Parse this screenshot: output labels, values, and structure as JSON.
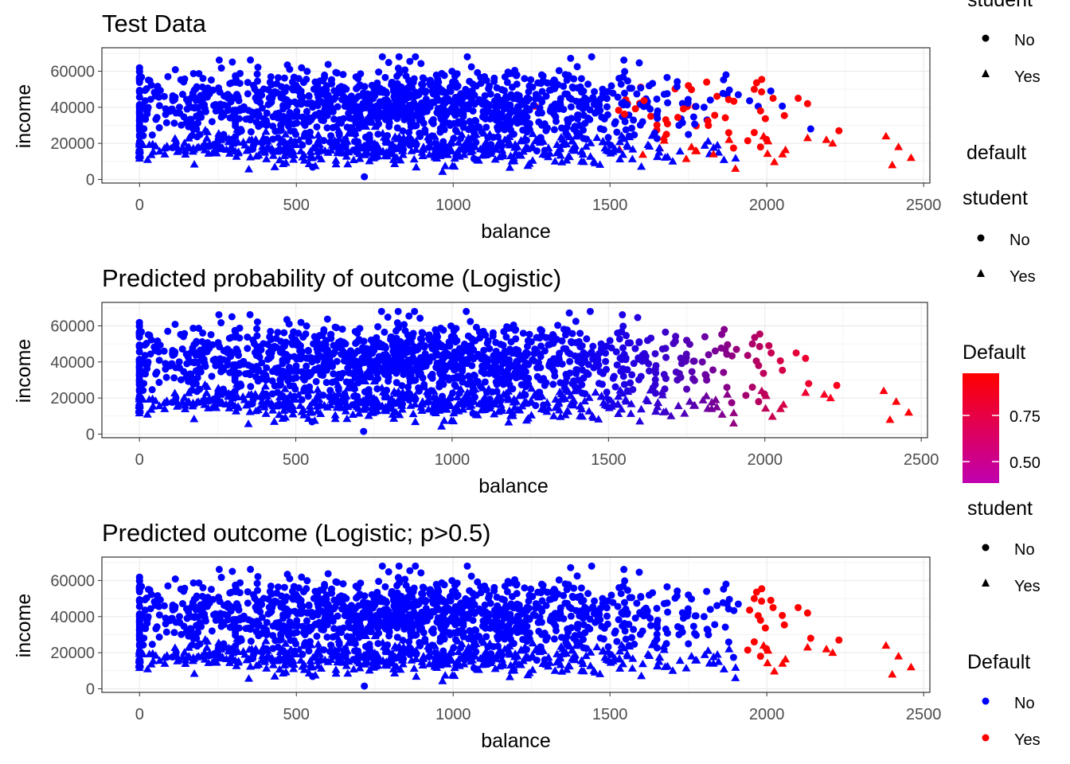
{
  "chart_data": [
    {
      "type": "scatter",
      "title": "Test Data",
      "xlabel": "balance",
      "ylabel": "income",
      "xlim": [
        -120,
        2520
      ],
      "ylim": [
        -2000,
        73000
      ],
      "xticks": [
        "0",
        "500",
        "1000",
        "1500",
        "2000",
        "2500"
      ],
      "yticks": [
        "0",
        "20000",
        "40000",
        "60000"
      ],
      "color_mode": "discrete",
      "grid": true,
      "series": [
        {
          "name": "No",
          "shape": "circle",
          "color": "#0000FF"
        },
        {
          "name": "Yes",
          "shape": "triangle",
          "color": "#FF0000"
        }
      ]
    },
    {
      "type": "scatter",
      "title": "Predicted probability of outcome (Logistic)",
      "xlabel": "balance",
      "ylabel": "income",
      "xlim": [
        -120,
        2520
      ],
      "ylim": [
        -2000,
        73000
      ],
      "xticks": [
        "0",
        "500",
        "1000",
        "1500",
        "2000",
        "2500"
      ],
      "yticks": [
        "0",
        "20000",
        "40000",
        "60000"
      ],
      "color_mode": "gradient",
      "grid": true
    },
    {
      "type": "scatter",
      "title": "Predicted outcome (Logistic; p>0.5)",
      "xlabel": "balance",
      "ylabel": "income",
      "xlim": [
        -120,
        2520
      ],
      "ylim": [
        -2000,
        73000
      ],
      "xticks": [
        "0",
        "500",
        "1000",
        "1500",
        "2000",
        "2500"
      ],
      "yticks": [
        "0",
        "20000",
        "40000",
        "60000"
      ],
      "color_mode": "threshold",
      "threshold_balance": 1920,
      "grid": true
    }
  ],
  "legends": {
    "legend1": {
      "title": "student",
      "items": [
        "No",
        "Yes"
      ]
    },
    "legend2_title": "default",
    "legend2_student": {
      "title": "student",
      "items": [
        "No",
        "Yes"
      ]
    },
    "legend3_colorbar": {
      "title": "Default",
      "ticks": [
        "0.75",
        "0.50"
      ],
      "colors": [
        "#FF0000",
        "#C000B0"
      ]
    },
    "legend4": {
      "title": "student",
      "items": [
        "No",
        "Yes"
      ]
    },
    "legend5": {
      "title": "Default",
      "items": [
        "No",
        "Yes"
      ],
      "colors": [
        "#0000FF",
        "#FF0000"
      ]
    }
  },
  "colors": {
    "no": "#0000FF",
    "yes": "#FF0000",
    "panel_border": "#333333",
    "grid_major": "#EBEBEB"
  }
}
